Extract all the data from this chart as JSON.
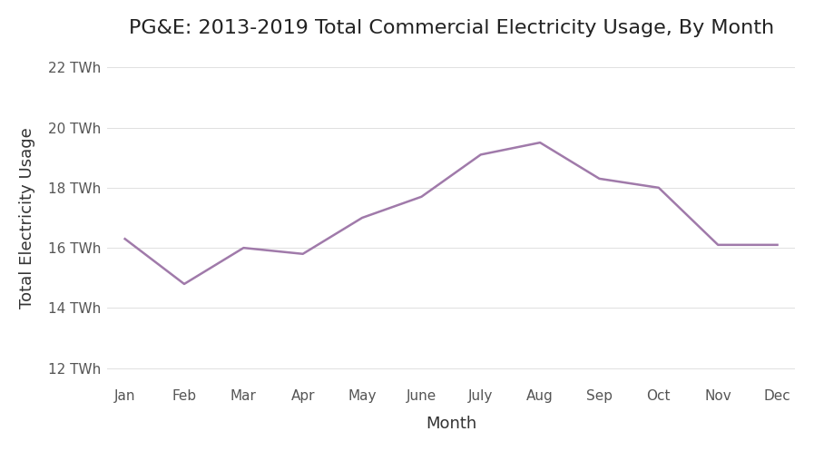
{
  "title": "PG&E: 2013-2019 Total Commercial Electricity Usage, By Month",
  "xlabel": "Month",
  "ylabel": "Total Electricity Usage",
  "months": [
    "Jan",
    "Feb",
    "Mar",
    "Apr",
    "May",
    "June",
    "July",
    "Aug",
    "Sep",
    "Oct",
    "Nov",
    "Dec"
  ],
  "values": [
    16.3,
    14.8,
    16.0,
    15.8,
    17.0,
    17.7,
    19.1,
    19.5,
    18.3,
    18.0,
    16.1,
    16.1
  ],
  "ylim": [
    11.5,
    22.5
  ],
  "yticks": [
    12,
    14,
    16,
    18,
    20,
    22
  ],
  "ytick_labels": [
    "12 TWh",
    "14 TWh",
    "16 TWh",
    "18 TWh",
    "20 TWh",
    "22 TWh"
  ],
  "line_color": "#a07aaa",
  "line_width": 1.8,
  "background_color": "#ffffff",
  "grid_color": "#e0e0e0",
  "title_fontsize": 16,
  "label_fontsize": 13,
  "tick_fontsize": 11,
  "tick_color": "#555555"
}
